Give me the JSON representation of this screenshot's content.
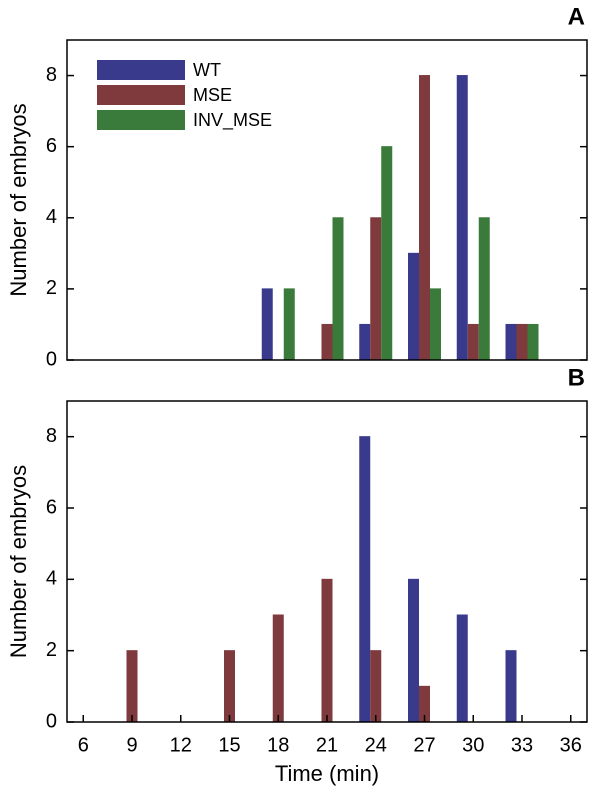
{
  "chart_data": [
    {
      "type": "bar",
      "title": "A",
      "ylabel": "Number of embryos",
      "x": [
        6,
        9,
        12,
        15,
        18,
        21,
        24,
        27,
        30,
        33,
        36
      ],
      "series": [
        {
          "name": "WT",
          "color": "#3a3a8c",
          "values": [
            0,
            0,
            0,
            0,
            2,
            0,
            1,
            3,
            8,
            1,
            0
          ]
        },
        {
          "name": "MSE",
          "color": "#7e3a3c",
          "values": [
            0,
            0,
            0,
            0,
            0,
            1,
            4,
            8,
            1,
            1,
            0
          ]
        },
        {
          "name": "INV_MSE",
          "color": "#3a7a3a",
          "values": [
            0,
            0,
            0,
            0,
            2,
            4,
            6,
            2,
            4,
            1,
            0
          ]
        }
      ],
      "xlim": [
        5,
        37
      ],
      "ylim": [
        0,
        9
      ],
      "yticks": [
        0,
        2,
        4,
        6,
        8
      ],
      "legend": "upper left"
    },
    {
      "type": "bar",
      "title": "B",
      "ylabel": "Number of embryos",
      "xlabel": "Time (min)",
      "x": [
        6,
        9,
        12,
        15,
        18,
        21,
        24,
        27,
        30,
        33,
        36
      ],
      "series": [
        {
          "color": "#3a3a8c",
          "values": [
            0,
            0,
            0,
            0,
            0,
            0,
            8,
            4,
            3,
            2,
            0
          ]
        },
        {
          "color": "#7e3a3c",
          "values": [
            0,
            2,
            0,
            2,
            3,
            4,
            2,
            1,
            0,
            0,
            0
          ]
        },
        {
          "color": "#3a7a3a",
          "values": [
            0,
            0,
            0,
            0,
            0,
            0,
            0,
            0,
            0,
            0,
            0
          ]
        }
      ],
      "xlim": [
        5,
        37
      ],
      "ylim": [
        0,
        9
      ],
      "yticks": [
        0,
        2,
        4,
        6,
        8
      ],
      "xticks": [
        6,
        9,
        12,
        15,
        18,
        21,
        24,
        27,
        30,
        33,
        36
      ]
    }
  ]
}
